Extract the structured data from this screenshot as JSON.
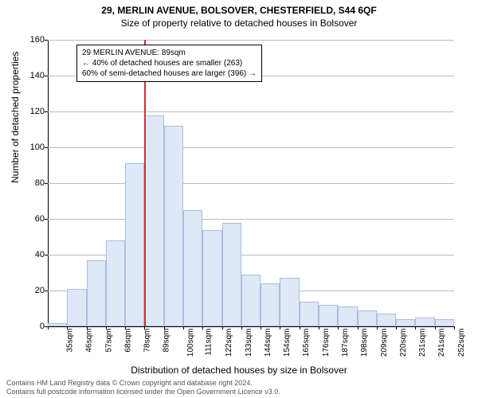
{
  "header": {
    "address": "29, MERLIN AVENUE, BOLSOVER, CHESTERFIELD, S44 6QF",
    "subtitle": "Size of property relative to detached houses in Bolsover"
  },
  "chart": {
    "type": "histogram",
    "ylim": [
      0,
      160
    ],
    "ytick_step": 20,
    "ylabel": "Number of detached properties",
    "xlabel": "Distribution of detached houses by size in Bolsover",
    "x_unit": "sqm",
    "x_tick_values": [
      35,
      46,
      57,
      68,
      78,
      89,
      100,
      111,
      122,
      133,
      144,
      154,
      165,
      176,
      187,
      198,
      209,
      220,
      231,
      241,
      252
    ],
    "bar_values": [
      2,
      21,
      37,
      48,
      91,
      118,
      112,
      65,
      54,
      58,
      29,
      24,
      27,
      14,
      12,
      11,
      9,
      7,
      4,
      5,
      4
    ],
    "bar_fill": "#dfe8f6",
    "bar_border": "#a9bde0",
    "grid_color": "#bbbbbb",
    "background_color": "#ffffff",
    "axis_color": "#000000",
    "marker": {
      "color": "#cc3333",
      "index_after_bar": 5
    },
    "annotation": {
      "line1": "29 MERLIN AVENUE: 89sqm",
      "line2": "← 40% of detached houses are smaller (263)",
      "line3": "60% of semi-detached houses are larger (396) →"
    }
  },
  "footer": {
    "line1": "Contains HM Land Registry data © Crown copyright and database right 2024.",
    "line2": "Contains full postcode information licensed under the Open Government Licence v3.0."
  }
}
